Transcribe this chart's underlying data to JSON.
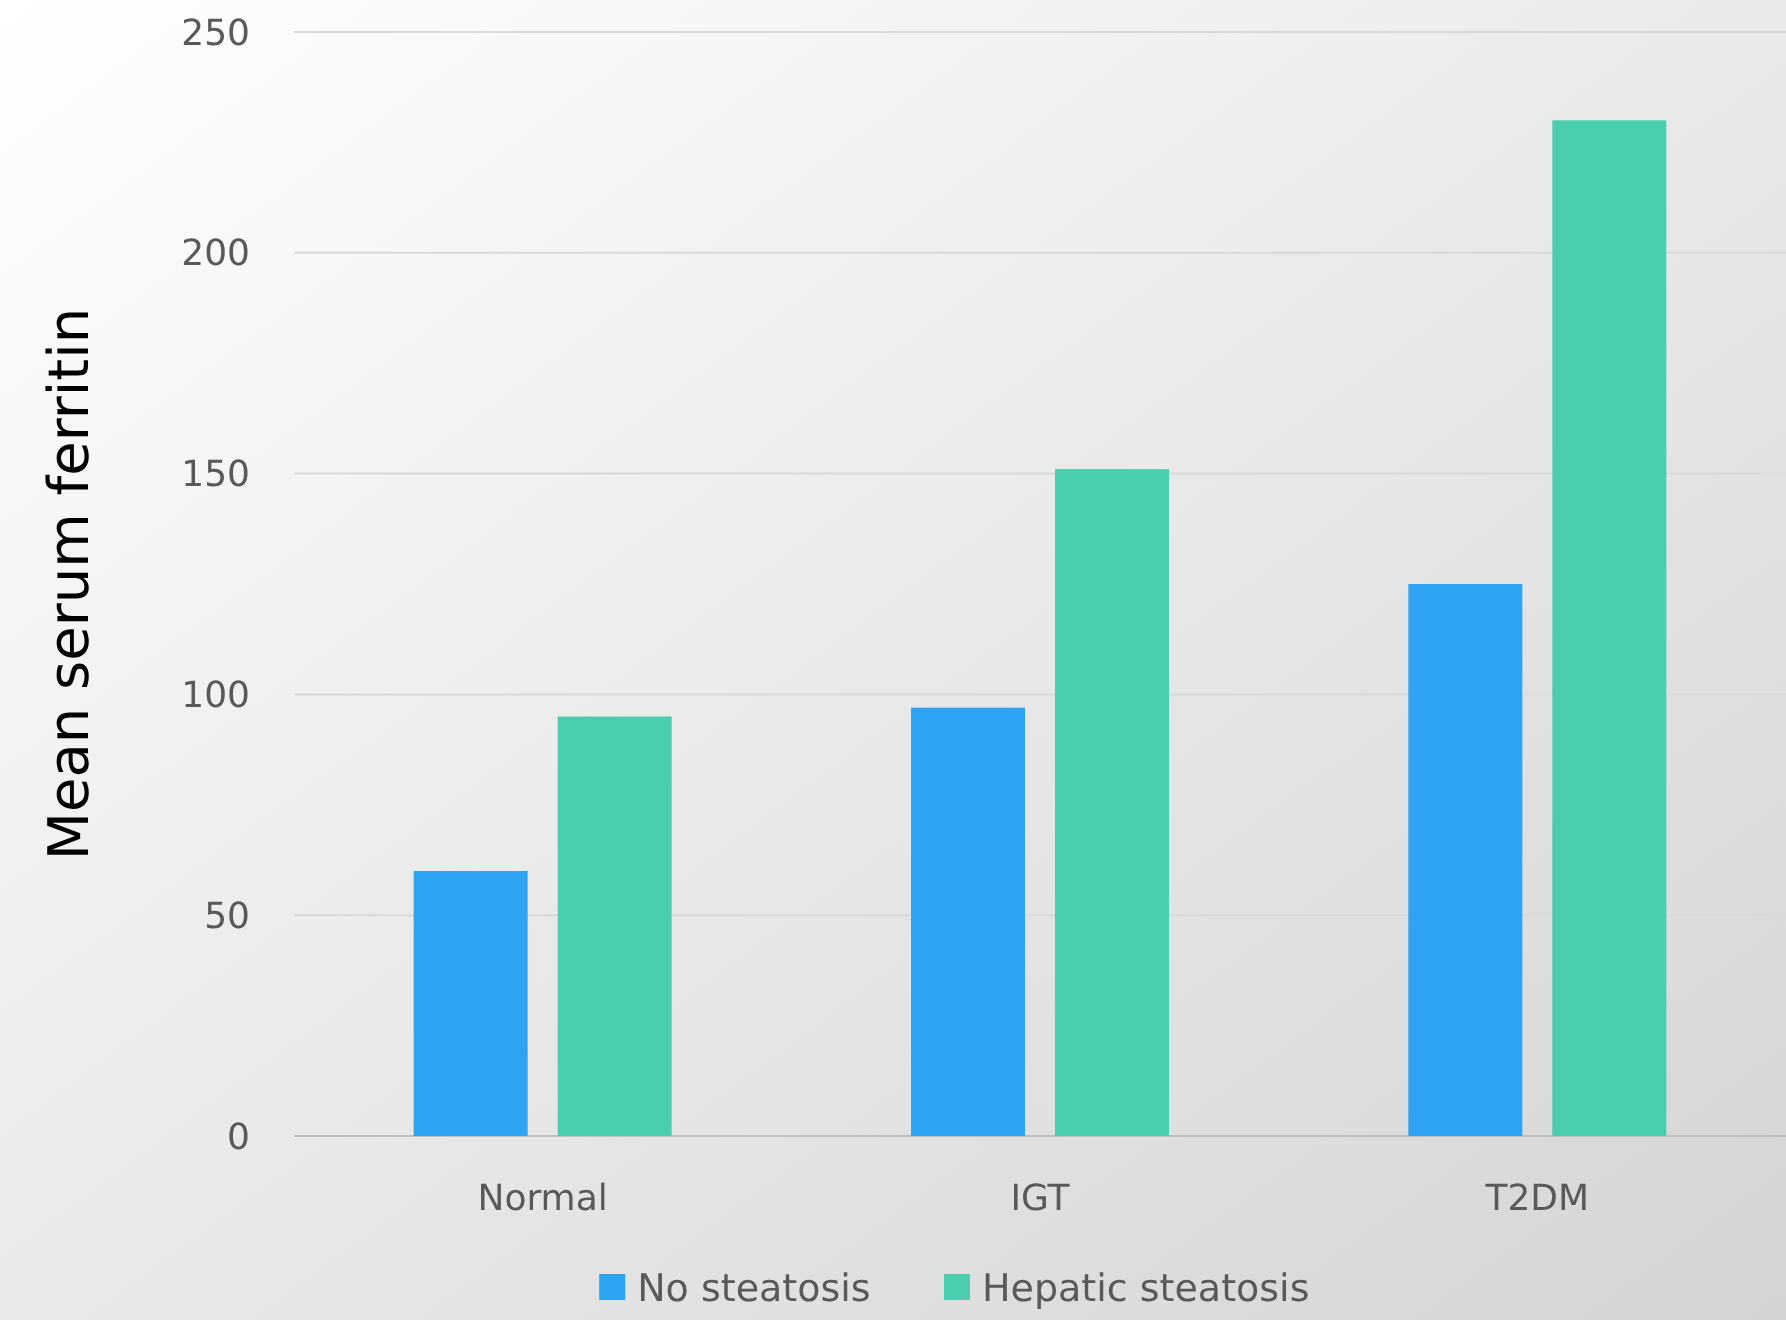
{
  "chart_data": {
    "type": "bar",
    "ylabel": "Mean serum ferritin",
    "categories": [
      "Normal",
      "IGT",
      "T2DM"
    ],
    "series": [
      {
        "name": "No steatosis",
        "color": "#2ea3f2",
        "values": [
          60,
          97,
          125
        ]
      },
      {
        "name": "Hepatic steatosis",
        "color": "#4bcdb0",
        "values": [
          95,
          151,
          230
        ]
      }
    ],
    "ylim": [
      0,
      250
    ],
    "yticks": [
      0,
      50,
      100,
      150,
      200,
      250
    ],
    "grid": "y",
    "legend": "bottom"
  }
}
